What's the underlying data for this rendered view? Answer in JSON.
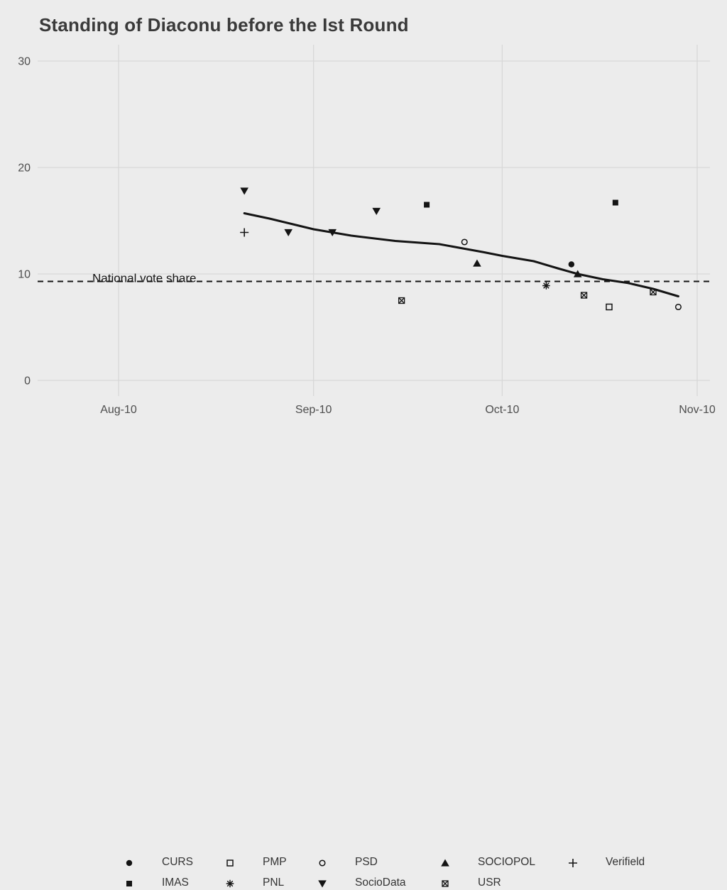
{
  "title": "Standing of Diaconu before the Ist Round",
  "annotation": {
    "label": "National vote share"
  },
  "colors": {
    "background": "#ECECEC",
    "gridline": "#D8D8D8",
    "ink": "#141414",
    "tick_text": "#4D4D4D",
    "title_text": "#3A3A3A",
    "legend_text": "#333333"
  },
  "axes": {
    "y": {
      "ticks": [
        {
          "label": "30",
          "value": 30
        },
        {
          "label": "20",
          "value": 20
        },
        {
          "label": "10",
          "value": 10
        },
        {
          "label": "0",
          "value": 0
        }
      ]
    },
    "x": {
      "ticks": [
        {
          "label": "Aug-10",
          "date": "2010-08-01"
        },
        {
          "label": "Sep-10",
          "date": "2010-09-01"
        },
        {
          "label": "Oct-10",
          "date": "2010-10-01"
        },
        {
          "label": "Nov-10",
          "date": "2010-11-01"
        }
      ]
    }
  },
  "legend": {
    "rows": [
      [
        {
          "label": "CURS",
          "marker": "circle-filled"
        },
        {
          "label": "PMP",
          "marker": "square-open"
        },
        {
          "label": "PSD",
          "marker": "circle-open"
        },
        {
          "label": "SOCIOPOL",
          "marker": "triangle-up"
        },
        {
          "label": "Verifield",
          "marker": "plus"
        }
      ],
      [
        {
          "label": "IMAS",
          "marker": "square-filled"
        },
        {
          "label": "PNL",
          "marker": "asterisk"
        },
        {
          "label": "SocioData",
          "marker": "triangle-down"
        },
        {
          "label": "USR",
          "marker": "square-cross"
        }
      ]
    ]
  },
  "chart_data": {
    "type": "scatter",
    "title": "Standing of Diaconu before the Ist Round",
    "xlabel": "",
    "ylabel": "",
    "x_range": [
      "2010-08-01",
      "2010-11-01"
    ],
    "y_range": [
      0,
      31.5
    ],
    "x_tick_labels": [
      "Aug-10",
      "Sep-10",
      "Oct-10",
      "Nov-10"
    ],
    "y_tick_values": [
      0,
      10,
      20,
      30
    ],
    "grid": true,
    "legend_position": "bottom",
    "reference_line": {
      "label": "National vote share",
      "value": 9.3,
      "style": "dashed"
    },
    "series": [
      {
        "name": "CURS",
        "marker": "circle-filled",
        "points": [
          {
            "date": "2010-10-12",
            "value": 10.9
          }
        ]
      },
      {
        "name": "IMAS",
        "marker": "square-filled",
        "points": [
          {
            "date": "2010-09-19",
            "value": 16.5
          },
          {
            "date": "2010-10-19",
            "value": 16.7
          }
        ]
      },
      {
        "name": "PMP",
        "marker": "square-open",
        "points": [
          {
            "date": "2010-10-18",
            "value": 6.9
          }
        ]
      },
      {
        "name": "PNL",
        "marker": "asterisk",
        "points": [
          {
            "date": "2010-10-08",
            "value": 8.9
          }
        ]
      },
      {
        "name": "PSD",
        "marker": "circle-open",
        "points": [
          {
            "date": "2010-09-25",
            "value": 13.0
          },
          {
            "date": "2010-10-29",
            "value": 6.9
          }
        ]
      },
      {
        "name": "SocioData",
        "marker": "triangle-down",
        "points": [
          {
            "date": "2010-08-21",
            "value": 17.8
          },
          {
            "date": "2010-08-28",
            "value": 13.9
          },
          {
            "date": "2010-09-04",
            "value": 13.9
          },
          {
            "date": "2010-09-11",
            "value": 15.9
          }
        ]
      },
      {
        "name": "SOCIOPOL",
        "marker": "triangle-up",
        "points": [
          {
            "date": "2010-09-27",
            "value": 11.0
          },
          {
            "date": "2010-10-13",
            "value": 10.0
          }
        ]
      },
      {
        "name": "USR",
        "marker": "square-cross",
        "points": [
          {
            "date": "2010-09-15",
            "value": 7.5
          },
          {
            "date": "2010-10-14",
            "value": 8.0
          },
          {
            "date": "2010-10-25",
            "value": 8.3
          }
        ]
      },
      {
        "name": "Verifield",
        "marker": "plus",
        "points": [
          {
            "date": "2010-08-21",
            "value": 13.9
          }
        ]
      }
    ],
    "trend_line": {
      "dates": [
        "2010-08-21",
        "2010-08-25",
        "2010-09-01",
        "2010-09-07",
        "2010-09-14",
        "2010-09-21",
        "2010-09-28",
        "2010-10-01",
        "2010-10-06",
        "2010-10-10",
        "2010-10-13",
        "2010-10-17",
        "2010-10-21",
        "2010-10-25",
        "2010-10-29"
      ],
      "values": [
        15.7,
        15.2,
        14.2,
        13.6,
        13.1,
        12.8,
        12.05,
        11.7,
        11.2,
        10.5,
        10.0,
        9.5,
        9.15,
        8.6,
        7.9
      ]
    }
  }
}
